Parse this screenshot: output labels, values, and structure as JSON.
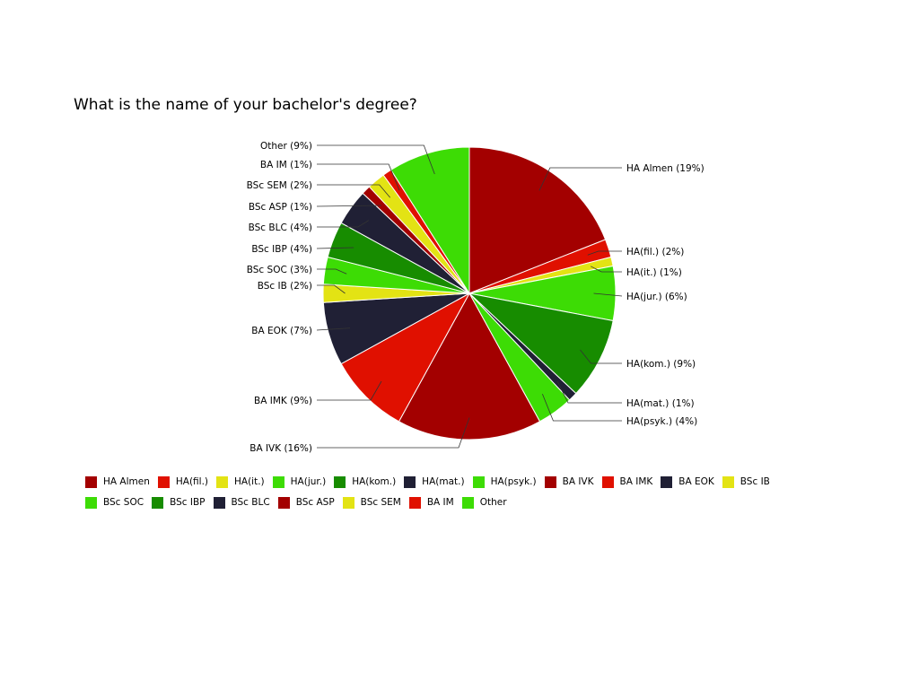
{
  "chart_data": {
    "type": "pie",
    "title": "What is the name of your bachelor's degree?",
    "start_angle_deg": 0,
    "direction": "clockwise",
    "slices": [
      {
        "name": "HA Almen",
        "label": "HA Almen (19%)",
        "value": 19,
        "color": "#a30000"
      },
      {
        "name": "HA(fil.)",
        "label": "HA(fil.) (2%)",
        "value": 2,
        "color": "#e01000"
      },
      {
        "name": "HA(it.)",
        "label": "HA(it.) (1%)",
        "value": 1,
        "color": "#e3e314"
      },
      {
        "name": "HA(jur.)",
        "label": "HA(jur.) (6%)",
        "value": 6,
        "color": "#3ddc05"
      },
      {
        "name": "HA(kom.)",
        "label": "HA(kom.) (9%)",
        "value": 9,
        "color": "#178c00"
      },
      {
        "name": "HA(mat.)",
        "label": "HA(mat.) (1%)",
        "value": 1,
        "color": "#202035"
      },
      {
        "name": "HA(psyk.)",
        "label": "HA(psyk.) (4%)",
        "value": 4,
        "color": "#3ddc05"
      },
      {
        "name": "BA IVK",
        "label": "BA IVK (16%)",
        "value": 16,
        "color": "#a30000"
      },
      {
        "name": "BA IMK",
        "label": "BA IMK (9%)",
        "value": 9,
        "color": "#e01000"
      },
      {
        "name": "BA EOK",
        "label": "BA EOK (7%)",
        "value": 7,
        "color": "#202035"
      },
      {
        "name": "BSc IB",
        "label": "BSc IB (2%)",
        "value": 2,
        "color": "#e3e314"
      },
      {
        "name": "BSc SOC",
        "label": "BSc SOC (3%)",
        "value": 3,
        "color": "#3ddc05"
      },
      {
        "name": "BSc IBP",
        "label": "BSc IBP (4%)",
        "value": 4,
        "color": "#178c00"
      },
      {
        "name": "BSc BLC",
        "label": "BSc BLC (4%)",
        "value": 4,
        "color": "#202035"
      },
      {
        "name": "BSc ASP",
        "label": "BSc ASP (1%)",
        "value": 1,
        "color": "#a30000"
      },
      {
        "name": "BSc SEM",
        "label": "BSc SEM (2%)",
        "value": 2,
        "color": "#e3e314"
      },
      {
        "name": "BA IM",
        "label": "BA IM (1%)",
        "value": 1,
        "color": "#e01000"
      },
      {
        "name": "Other",
        "label": "Other (9%)",
        "value": 9,
        "color": "#3ddc05"
      }
    ],
    "legend_placement": "bottom"
  }
}
